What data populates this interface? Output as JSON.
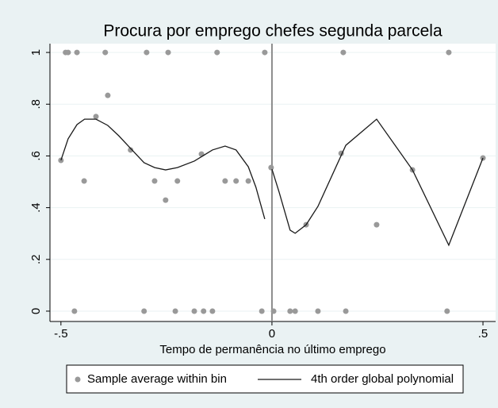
{
  "chart_data": {
    "type": "scatter",
    "title": "Procura por emprego chefes segunda parcela",
    "x_label": "Tempo de permanência no último emprego",
    "xlim": [
      -0.526,
      0.53
    ],
    "ylim": [
      -0.04,
      1.034
    ],
    "xticks": [
      {
        "value": -0.5,
        "label": "-.5"
      },
      0,
      {
        "value": 0.5,
        "label": ".5"
      }
    ],
    "yticks": [
      0,
      {
        "value": 0.2,
        "label": ".2"
      },
      {
        "value": 0.4,
        "label": ".4"
      },
      {
        "value": 0.6,
        "label": ".6"
      },
      {
        "value": 0.8,
        "label": ".8"
      },
      1
    ],
    "grid": true,
    "xline": 0,
    "legend": "bottom",
    "series": [
      {
        "name": "Sample average within bin",
        "type": "scatter",
        "color": "#999999",
        "x": [
          -0.5,
          -0.489,
          -0.483,
          -0.468,
          -0.462,
          -0.445,
          -0.417,
          -0.395,
          -0.389,
          -0.335,
          -0.303,
          -0.297,
          -0.278,
          -0.252,
          -0.246,
          -0.229,
          -0.224,
          -0.184,
          -0.167,
          -0.162,
          -0.141,
          -0.13,
          -0.111,
          -0.085,
          -0.056,
          -0.024,
          -0.017,
          -0.002,
          0.004,
          0.043,
          0.055,
          0.081,
          0.109,
          0.164,
          0.169,
          0.175,
          0.248,
          0.333,
          0.415,
          0.419,
          0.5
        ],
        "values": [
          0.583,
          1,
          1,
          0,
          1,
          0.503,
          0.752,
          1,
          0.834,
          0.623,
          0,
          1,
          0.503,
          0.429,
          1,
          0,
          0.503,
          0,
          0.607,
          0,
          0,
          1,
          0.503,
          0.503,
          0.503,
          0,
          1,
          0.555,
          0,
          0,
          0,
          0.334,
          0,
          0.61,
          1,
          0,
          0.334,
          0.546,
          0,
          1,
          0.592
        ]
      },
      {
        "name": "4th order global polynomial",
        "type": "line",
        "color": "#1a1a1a",
        "x": [
          -0.5,
          -0.483,
          -0.462,
          -0.444,
          -0.417,
          -0.389,
          -0.363,
          -0.335,
          -0.303,
          -0.278,
          -0.252,
          -0.224,
          -0.184,
          -0.141,
          -0.111,
          -0.085,
          -0.056,
          -0.038,
          -0.017,
          null,
          0,
          0.017,
          0.043,
          0.055,
          0.081,
          0.109,
          0.175,
          0.248,
          0.333,
          0.419,
          0.5
        ],
        "values": [
          0.583,
          0.666,
          0.721,
          0.742,
          0.742,
          0.718,
          0.678,
          0.629,
          0.574,
          0.555,
          0.546,
          0.555,
          0.58,
          0.623,
          0.638,
          0.623,
          0.558,
          0.479,
          0.356,
          null,
          0.549,
          0.46,
          0.313,
          0.301,
          0.334,
          0.405,
          0.641,
          0.742,
          0.546,
          0.255,
          0.592
        ]
      }
    ]
  }
}
